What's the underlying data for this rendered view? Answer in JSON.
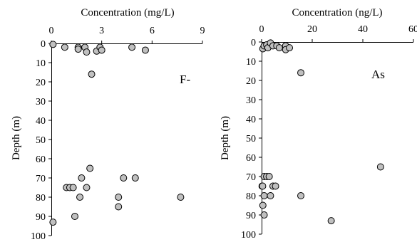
{
  "colors": {
    "marker_fill": "#c0c0c0",
    "marker_stroke": "#000000",
    "axis": "#000000"
  },
  "chart_data": [
    {
      "type": "scatter",
      "title": "",
      "xlabel": "Concentration (mg/L)",
      "ylabel": "Depth (m)",
      "xlim": [
        0,
        9
      ],
      "ylim": [
        0,
        100
      ],
      "x_ticks": [
        0,
        3,
        6,
        9
      ],
      "y_ticks": [
        0,
        10,
        20,
        30,
        40,
        50,
        60,
        70,
        80,
        90,
        100
      ],
      "y_reversed": true,
      "x_axis_position": "top",
      "grid": false,
      "annotation": "F-",
      "points": [
        {
          "x": 0.1,
          "y": 0.5
        },
        {
          "x": 0.8,
          "y": 2
        },
        {
          "x": 1.6,
          "y": 2
        },
        {
          "x": 1.6,
          "y": 3
        },
        {
          "x": 2.0,
          "y": 2
        },
        {
          "x": 2.1,
          "y": 4.5
        },
        {
          "x": 2.7,
          "y": 4
        },
        {
          "x": 2.9,
          "y": 2
        },
        {
          "x": 3.0,
          "y": 3.5
        },
        {
          "x": 4.8,
          "y": 2
        },
        {
          "x": 5.6,
          "y": 3.5
        },
        {
          "x": 2.4,
          "y": 16
        },
        {
          "x": 2.3,
          "y": 65
        },
        {
          "x": 1.8,
          "y": 70
        },
        {
          "x": 4.3,
          "y": 70
        },
        {
          "x": 5.0,
          "y": 70
        },
        {
          "x": 0.9,
          "y": 75
        },
        {
          "x": 1.1,
          "y": 75
        },
        {
          "x": 1.3,
          "y": 75
        },
        {
          "x": 2.1,
          "y": 75
        },
        {
          "x": 1.7,
          "y": 80
        },
        {
          "x": 4.0,
          "y": 80
        },
        {
          "x": 7.7,
          "y": 80
        },
        {
          "x": 4.0,
          "y": 85
        },
        {
          "x": 1.4,
          "y": 90
        },
        {
          "x": 0.1,
          "y": 93
        }
      ]
    },
    {
      "type": "scatter",
      "title": "",
      "xlabel": "Concentration (ng/L)",
      "ylabel": "Depth (m)",
      "xlim": [
        0,
        60
      ],
      "ylim": [
        0,
        100
      ],
      "x_ticks": [
        0,
        20,
        40,
        60
      ],
      "y_ticks": [
        0,
        10,
        20,
        30,
        40,
        50,
        60,
        70,
        80,
        90,
        100
      ],
      "y_reversed": true,
      "x_axis_position": "top",
      "grid": false,
      "annotation": "As",
      "points": [
        {
          "x": 0.5,
          "y": 3.5
        },
        {
          "x": 1.0,
          "y": 2
        },
        {
          "x": 2.0,
          "y": 1.5
        },
        {
          "x": 2.5,
          "y": 3
        },
        {
          "x": 3.5,
          "y": 0.5
        },
        {
          "x": 4.5,
          "y": 2
        },
        {
          "x": 6.0,
          "y": 2
        },
        {
          "x": 7.0,
          "y": 3
        },
        {
          "x": 9.5,
          "y": 2
        },
        {
          "x": 9.5,
          "y": 4
        },
        {
          "x": 11.0,
          "y": 3
        },
        {
          "x": 15.5,
          "y": 16
        },
        {
          "x": 47.0,
          "y": 65
        },
        {
          "x": 1.0,
          "y": 70
        },
        {
          "x": 2.0,
          "y": 70
        },
        {
          "x": 3.0,
          "y": 70
        },
        {
          "x": 0.2,
          "y": 75
        },
        {
          "x": 0.4,
          "y": 75
        },
        {
          "x": 4.5,
          "y": 75
        },
        {
          "x": 5.5,
          "y": 75
        },
        {
          "x": 1.0,
          "y": 80
        },
        {
          "x": 3.5,
          "y": 80
        },
        {
          "x": 15.5,
          "y": 80
        },
        {
          "x": 0.5,
          "y": 85
        },
        {
          "x": 1.0,
          "y": 90
        },
        {
          "x": 27.5,
          "y": 93
        }
      ]
    }
  ]
}
